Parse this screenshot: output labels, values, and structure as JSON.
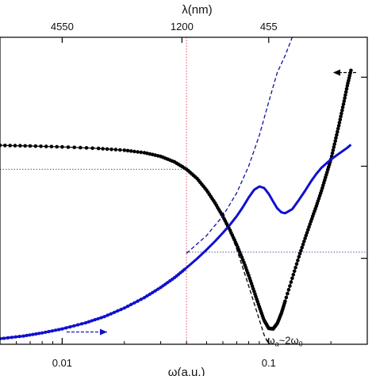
{
  "chart_data": {
    "type": "line",
    "xscale": "log",
    "xlim": [
      0.005,
      0.3
    ],
    "ylim": [
      0,
      1
    ],
    "grid": false,
    "legend": "none",
    "xlabel": "ω(a.u.)",
    "x_ticks": [
      {
        "value": 0.01,
        "label": "0.01"
      },
      {
        "value": 0.1,
        "label": "0.1"
      }
    ],
    "top_axis": {
      "label": "λ(nm)",
      "ticks": [
        {
          "value": 0.01,
          "label": "4550"
        },
        {
          "value": 0.038,
          "label": "1200"
        },
        {
          "value": 0.1,
          "label": "455"
        }
      ]
    },
    "right_ticks": [
      0.28,
      0.58,
      0.87
    ],
    "series": [
      {
        "style": "black-dots",
        "color": "#000000",
        "x": [
          0.005,
          0.007,
          0.01,
          0.015,
          0.02,
          0.025,
          0.03,
          0.035,
          0.04,
          0.045,
          0.05,
          0.055,
          0.06,
          0.065,
          0.07,
          0.075,
          0.08,
          0.085,
          0.09,
          0.095,
          0.1,
          0.105,
          0.11,
          0.115,
          0.12,
          0.13,
          0.14,
          0.15,
          0.16,
          0.17,
          0.18,
          0.19,
          0.2,
          0.21,
          0.22,
          0.23,
          0.24,
          0.25
        ],
        "y": [
          0.648,
          0.646,
          0.643,
          0.638,
          0.632,
          0.624,
          0.612,
          0.594,
          0.57,
          0.54,
          0.502,
          0.46,
          0.416,
          0.371,
          0.324,
          0.275,
          0.224,
          0.172,
          0.122,
          0.078,
          0.052,
          0.05,
          0.068,
          0.1,
          0.14,
          0.215,
          0.285,
          0.345,
          0.4,
          0.45,
          0.5,
          0.552,
          0.602,
          0.662,
          0.722,
          0.782,
          0.842,
          0.892
        ]
      },
      {
        "style": "blue-line",
        "color": "#1010d0",
        "x": [
          0.005,
          0.0065,
          0.008,
          0.01,
          0.013,
          0.016,
          0.02,
          0.025,
          0.03,
          0.035,
          0.04,
          0.045,
          0.05,
          0.055,
          0.06,
          0.065,
          0.07,
          0.075,
          0.08,
          0.085,
          0.09,
          0.095,
          0.1,
          0.105,
          0.11,
          0.115,
          0.12,
          0.13,
          0.14,
          0.15,
          0.16,
          0.17,
          0.18,
          0.2,
          0.22,
          0.24,
          0.25
        ],
        "y": [
          0.018,
          0.027,
          0.037,
          0.05,
          0.07,
          0.09,
          0.118,
          0.152,
          0.185,
          0.217,
          0.249,
          0.279,
          0.308,
          0.336,
          0.363,
          0.39,
          0.417,
          0.447,
          0.478,
          0.503,
          0.514,
          0.509,
          0.49,
          0.465,
          0.443,
          0.43,
          0.427,
          0.44,
          0.47,
          0.5,
          0.53,
          0.555,
          0.575,
          0.602,
          0.622,
          0.64,
          0.65
        ]
      },
      {
        "style": "blue-dashed",
        "color": "#1010a0",
        "x": [
          0.04,
          0.05,
          0.06,
          0.07,
          0.08,
          0.09,
          0.1,
          0.11,
          0.12,
          0.13
        ],
        "y": [
          0.296,
          0.354,
          0.418,
          0.493,
          0.58,
          0.68,
          0.79,
          0.885,
          0.94,
          1.0
        ]
      },
      {
        "style": "black-dashed",
        "color": "#000000",
        "x": [
          0.06,
          0.07,
          0.08,
          0.09,
          0.095,
          0.1
        ],
        "y": [
          0.43,
          0.31,
          0.19,
          0.08,
          0.03,
          0.0
        ]
      }
    ],
    "reference_lines": [
      {
        "kind": "vertical",
        "x": 0.04,
        "color": "#e05060"
      },
      {
        "kind": "horizontal",
        "y": 0.57,
        "from_x": 0.005,
        "to_x": 0.04,
        "color": "#5050b0"
      },
      {
        "kind": "horizontal",
        "y": 0.3,
        "from_x": 0.04,
        "to_x": 0.3,
        "color": "#5050b0"
      }
    ],
    "arrows": [
      {
        "color": "#000000",
        "direction": "left",
        "from": [
          0.265,
          0.885
        ],
        "to": [
          0.205,
          0.885
        ]
      },
      {
        "color": "#1010d0",
        "direction": "right",
        "from": [
          0.0105,
          0.04
        ],
        "to": [
          0.0165,
          0.04
        ]
      }
    ],
    "annotations": [
      {
        "text_parts": [
          "ω",
          "a",
          "~2ω",
          "0"
        ],
        "x": 0.098,
        "y": 0.012
      }
    ]
  }
}
